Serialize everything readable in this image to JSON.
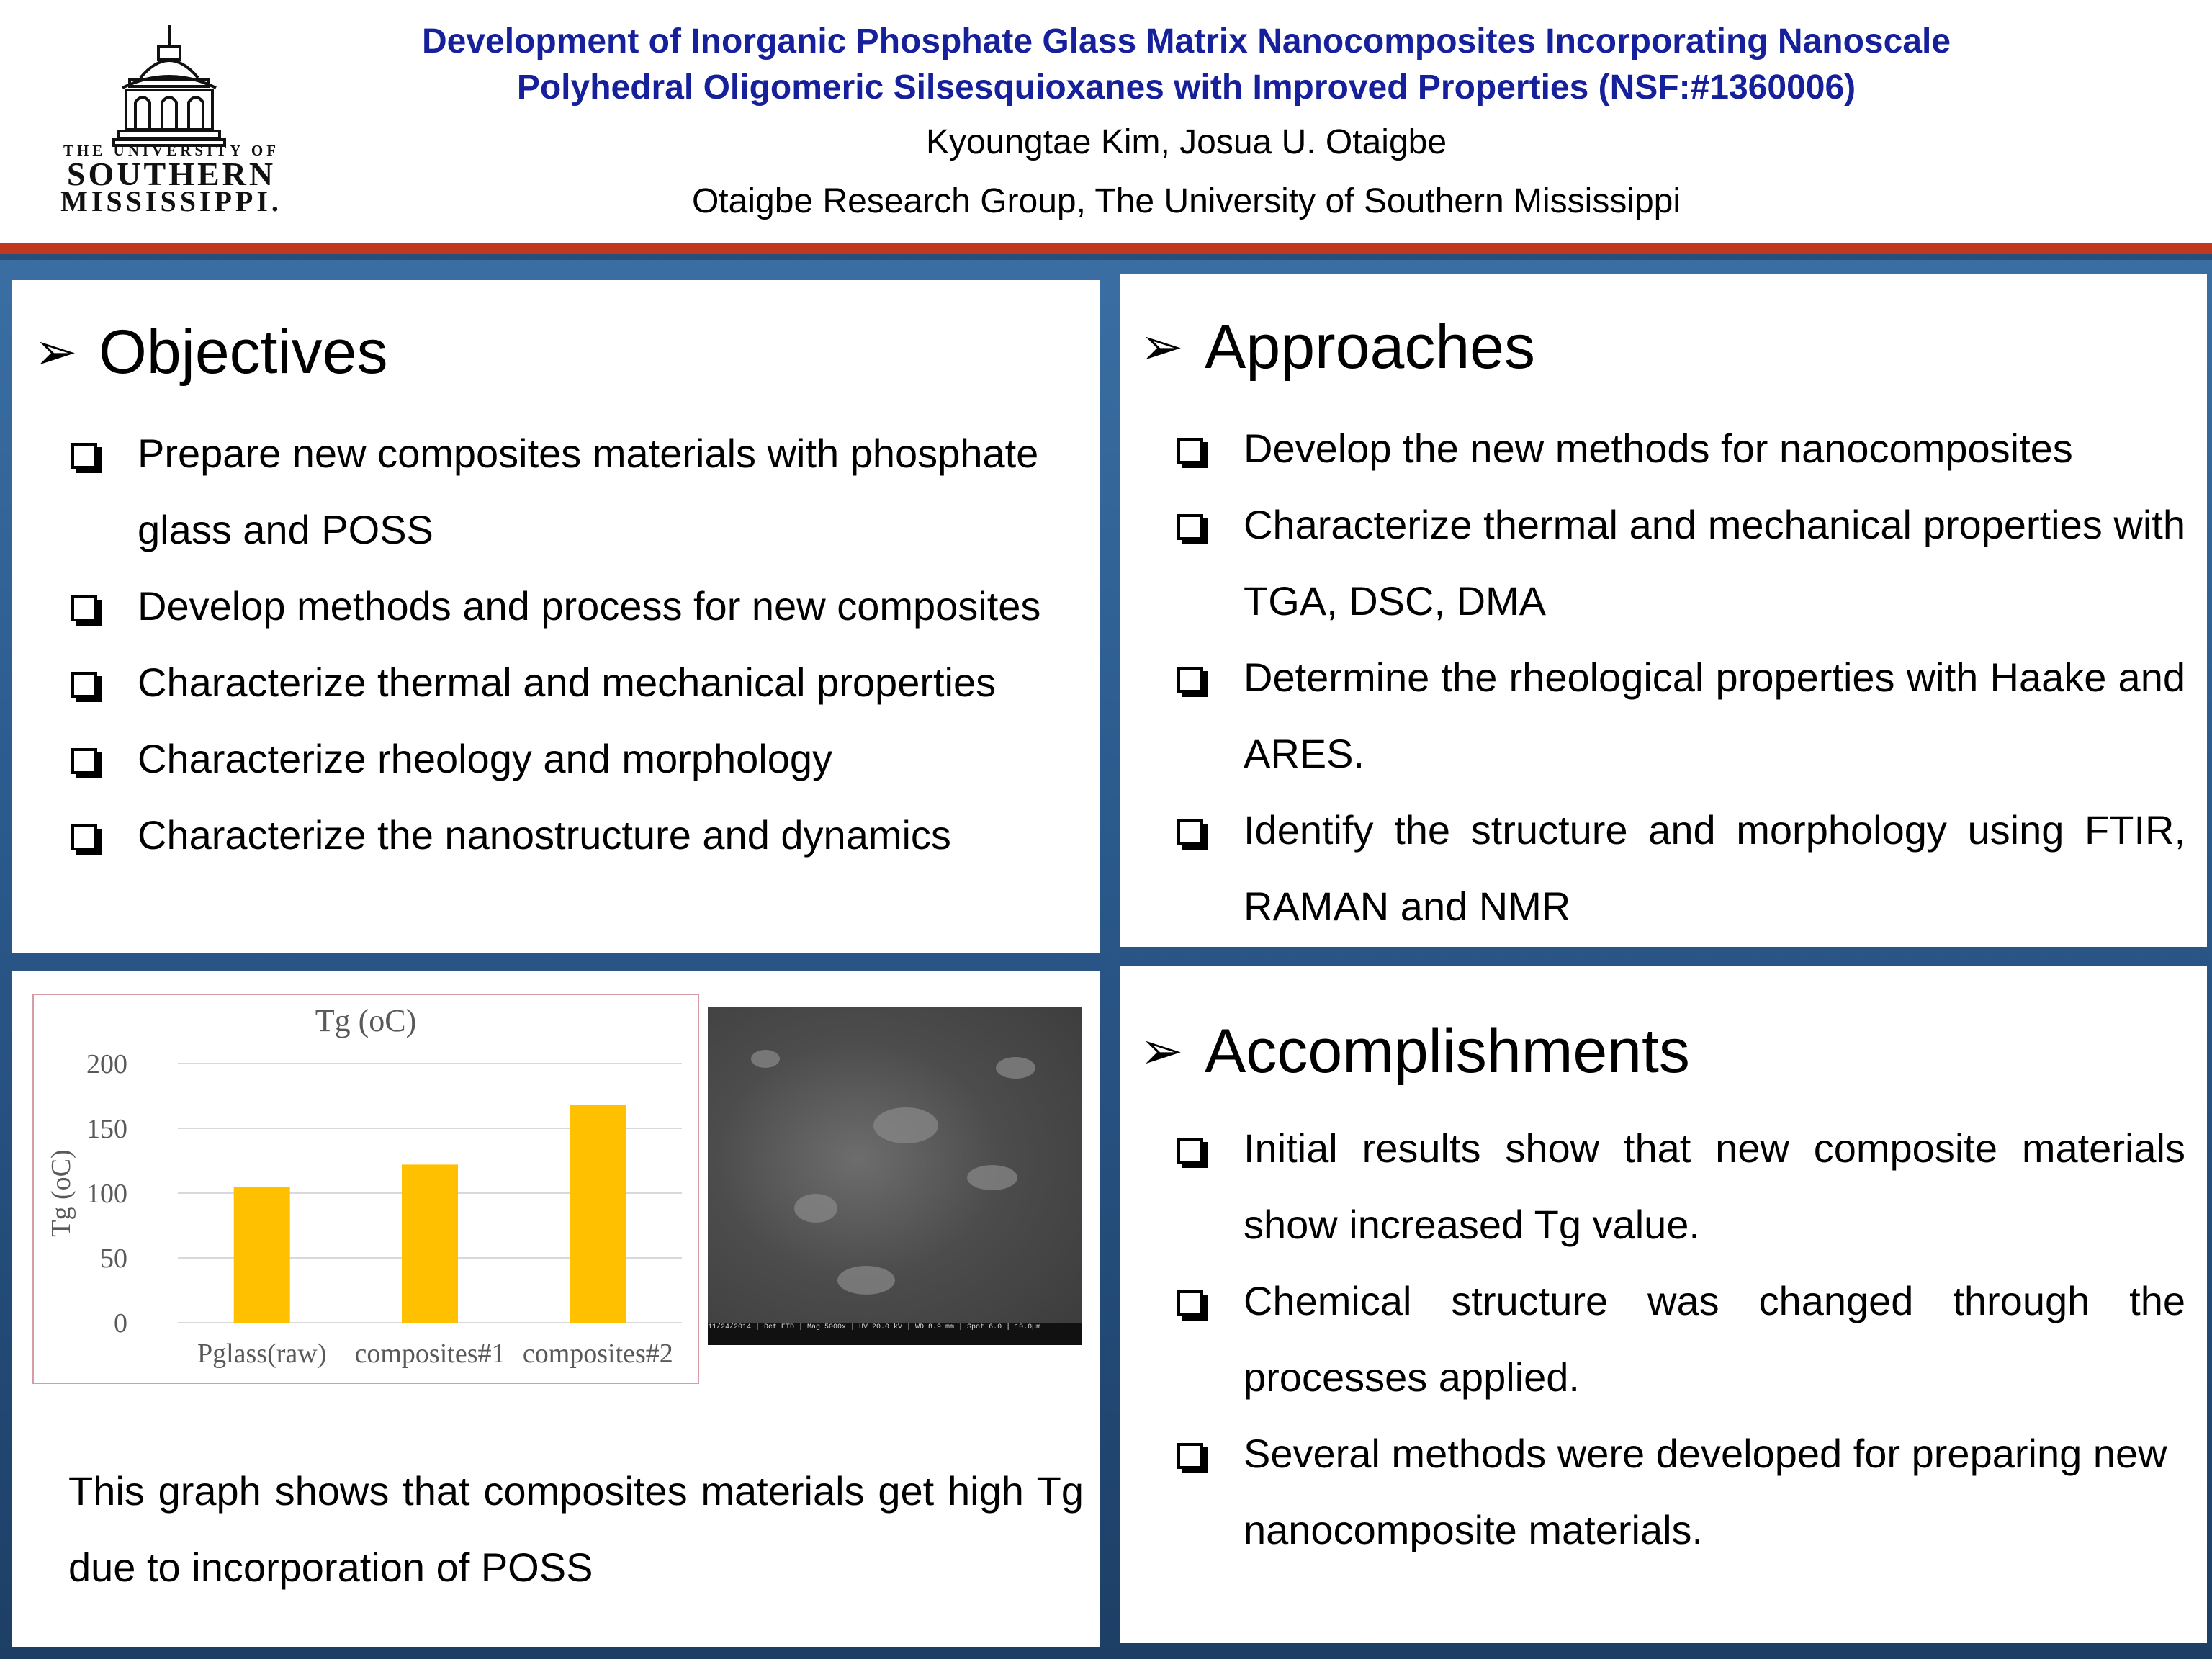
{
  "header": {
    "title_line1": "Development of Inorganic Phosphate Glass Matrix Nanocomposites Incorporating Nanoscale",
    "title_line2": "Polyhedral Oligomeric Silsesquioxanes with Improved Properties (NSF:#1360006)",
    "authors": "Kyoungtae Kim, Josua U. Otaigbe",
    "affiliation": "Otaigbe Research Group, The University of Southern Mississippi",
    "logo": {
      "line1": "THE UNIVERSITY OF",
      "line2": "SOUTHERN",
      "line3": "MISSISSIPPI."
    }
  },
  "colors": {
    "title": "#15209a",
    "red_bar": "#c1381f",
    "background_blue": "#2b5a8d",
    "bar_fill": "#ffc000"
  },
  "objectives": {
    "heading": "Objectives",
    "items": [
      "Prepare new composites materials with phosphate glass and POSS",
      "Develop methods and process for new composites",
      "Characterize thermal and mechanical properties",
      "Characterize rheology and morphology",
      "Characterize the nanostructure and dynamics"
    ]
  },
  "approaches": {
    "heading": "Approaches",
    "items": [
      "Develop the new methods for nanocomposites",
      "Characterize thermal and mechanical properties with TGA, DSC, DMA",
      "Determine the rheological properties with Haake and ARES.",
      "Identify the structure and morphology using FTIR, RAMAN and NMR"
    ]
  },
  "accomplishments": {
    "heading": "Accomplishments",
    "items": [
      "Initial results show that new composite materials show increased Tg value.",
      "Chemical structure was changed through the processes applied.",
      "Several methods were developed for preparing new nanocomposite materials."
    ]
  },
  "results": {
    "caption": "This graph shows that composites materials get high Tg due to incorporation of POSS",
    "sem_info": "11/24/2014 | Det ETD | Mag 5000x | HV 20.0 kV | WD 8.9 mm | Spot 6.0 | 10.0μm"
  },
  "chart_data": {
    "type": "bar",
    "title": "Tg (oC)",
    "xlabel": "",
    "ylabel": "Tg (oC)",
    "categories": [
      "Pglass(raw)",
      "composites#1",
      "composites#2"
    ],
    "values": [
      105,
      122,
      168
    ],
    "ylim": [
      0,
      200
    ],
    "yticks": [
      0,
      50,
      100,
      150,
      200
    ],
    "grid": true,
    "legend": "none"
  }
}
